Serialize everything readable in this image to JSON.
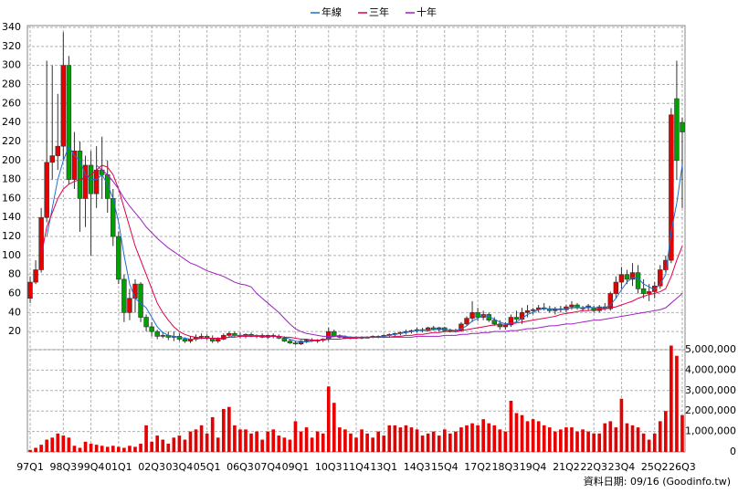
{
  "chart_data": {
    "type": "candlestick",
    "categories": [
      "97Q1",
      null,
      null,
      null,
      null,
      null,
      "98Q3",
      null,
      null,
      null,
      null,
      "99Q4",
      null,
      null,
      null,
      null,
      "01Q1",
      null,
      null,
      null,
      null,
      null,
      "02Q3",
      null,
      null,
      null,
      null,
      "03Q4",
      null,
      null,
      null,
      null,
      "05Q1",
      null,
      null,
      null,
      null,
      null,
      "06Q3",
      null,
      null,
      null,
      null,
      "07Q4",
      null,
      null,
      null,
      null,
      "09Q1",
      null,
      null,
      null,
      null,
      null,
      "10Q3",
      null,
      null,
      null,
      null,
      "11Q4",
      null,
      null,
      null,
      null,
      "13Q1",
      null,
      null,
      null,
      null,
      null,
      "14Q3",
      null,
      null,
      null,
      null,
      "15Q4",
      null,
      null,
      null,
      null,
      null,
      "17Q2",
      null,
      null,
      null,
      null,
      "18Q3",
      null,
      null,
      null,
      null,
      "19Q4",
      null,
      null,
      null,
      null,
      null,
      "21Q2",
      null,
      null,
      null,
      null,
      "22Q3",
      null,
      null,
      null,
      null,
      "23Q4",
      null,
      null,
      null,
      null,
      null,
      "25Q2",
      null,
      null,
      null,
      null,
      "26Q3"
    ],
    "open": [
      55,
      72,
      85,
      140,
      198,
      205,
      215,
      300,
      180,
      210,
      160,
      195,
      165,
      190,
      185,
      160,
      120,
      75,
      40,
      55,
      70,
      35,
      25,
      20,
      15,
      16,
      14,
      15,
      12,
      10,
      12,
      14,
      15,
      13,
      10,
      12,
      16,
      18,
      16,
      15,
      17,
      15,
      16,
      14,
      16,
      15,
      13,
      10,
      8,
      7,
      10,
      11,
      10,
      11,
      12,
      20,
      15,
      14,
      13,
      14,
      13,
      14,
      14,
      15,
      15,
      16,
      17,
      18,
      19,
      20,
      21,
      22,
      21,
      24,
      22,
      24,
      21,
      20,
      21,
      28,
      34,
      40,
      35,
      38,
      32,
      28,
      25,
      27,
      35,
      33,
      40,
      42,
      43,
      45,
      44,
      42,
      44,
      43,
      46,
      48,
      44,
      45,
      45,
      42,
      46,
      44,
      60,
      72,
      80,
      75,
      82,
      65,
      60,
      62,
      68,
      85,
      95,
      265,
      240
    ],
    "high": [
      78,
      95,
      150,
      305,
      300,
      270,
      335,
      310,
      230,
      220,
      205,
      210,
      215,
      225,
      200,
      170,
      125,
      80,
      65,
      75,
      72,
      38,
      30,
      22,
      20,
      20,
      20,
      18,
      14,
      15,
      17,
      18,
      17,
      16,
      14,
      18,
      20,
      20,
      19,
      18,
      19,
      17,
      18,
      17,
      18,
      17,
      15,
      12,
      10,
      11,
      12,
      13,
      12,
      13,
      24,
      22,
      17,
      16,
      15,
      15,
      15,
      15,
      16,
      16,
      17,
      18,
      19,
      20,
      22,
      22,
      24,
      24,
      25,
      26,
      25,
      25,
      23,
      23,
      30,
      36,
      52,
      45,
      42,
      40,
      35,
      32,
      30,
      38,
      42,
      45,
      48,
      45,
      48,
      50,
      47,
      46,
      47,
      48,
      52,
      50,
      47,
      49,
      47,
      48,
      50,
      62,
      78,
      88,
      85,
      92,
      90,
      75,
      70,
      72,
      90,
      100,
      255,
      305,
      245
    ],
    "low": [
      50,
      70,
      82,
      135,
      180,
      190,
      200,
      175,
      170,
      125,
      130,
      100,
      150,
      160,
      145,
      110,
      70,
      30,
      32,
      40,
      30,
      20,
      15,
      12,
      13,
      11,
      10,
      10,
      8,
      8,
      10,
      12,
      11,
      8,
      8,
      11,
      14,
      14,
      13,
      13,
      14,
      13,
      13,
      12,
      13,
      12,
      9,
      7,
      6,
      6,
      8,
      9,
      8,
      9,
      10,
      14,
      13,
      12,
      12,
      12,
      12,
      13,
      13,
      13,
      14,
      14,
      15,
      16,
      17,
      18,
      19,
      19,
      20,
      21,
      20,
      20,
      19,
      19,
      20,
      26,
      30,
      31,
      32,
      30,
      26,
      22,
      22,
      25,
      30,
      28,
      35,
      38,
      40,
      42,
      40,
      38,
      40,
      40,
      43,
      43,
      41,
      42,
      40,
      40,
      42,
      42,
      55,
      65,
      70,
      68,
      60,
      55,
      52,
      55,
      65,
      82,
      92,
      180,
      150
    ],
    "close": [
      72,
      85,
      140,
      198,
      205,
      215,
      300,
      180,
      210,
      160,
      195,
      165,
      190,
      185,
      160,
      120,
      75,
      40,
      55,
      70,
      35,
      25,
      20,
      15,
      16,
      14,
      15,
      12,
      10,
      12,
      14,
      15,
      13,
      10,
      12,
      16,
      18,
      16,
      15,
      17,
      15,
      16,
      14,
      16,
      15,
      13,
      10,
      8,
      7,
      10,
      11,
      10,
      11,
      12,
      20,
      15,
      14,
      13,
      14,
      13,
      14,
      14,
      15,
      14,
      16,
      17,
      18,
      19,
      20,
      21,
      22,
      21,
      24,
      22,
      24,
      21,
      20,
      21,
      28,
      34,
      40,
      35,
      38,
      32,
      28,
      25,
      27,
      35,
      33,
      40,
      42,
      43,
      45,
      44,
      42,
      44,
      43,
      46,
      48,
      45,
      45,
      47,
      42,
      46,
      44,
      60,
      72,
      80,
      75,
      82,
      65,
      60,
      62,
      68,
      85,
      95,
      248,
      200,
      230
    ],
    "up_color": "#e60000",
    "down_color": "#00a000",
    "ylim": [
      0,
      340
    ],
    "yticks": [
      20,
      40,
      60,
      80,
      100,
      120,
      140,
      160,
      180,
      200,
      220,
      240,
      260,
      280,
      300,
      320,
      340
    ],
    "grid": true,
    "series": [
      {
        "name": "年線",
        "color": "#1f6fd0",
        "values": [
          null,
          null,
          null,
          120,
          150,
          180,
          200,
          215,
          205,
          200,
          185,
          180,
          180,
          185,
          175,
          160,
          135,
          100,
          70,
          55,
          50,
          45,
          35,
          25,
          19,
          16,
          15,
          14,
          13,
          12,
          12,
          13,
          13,
          13,
          13,
          13,
          14,
          16,
          16,
          16,
          16,
          16,
          15,
          15,
          15,
          15,
          14,
          12,
          10,
          9,
          9,
          10,
          11,
          11,
          13,
          15,
          16,
          15,
          14,
          14,
          14,
          14,
          14,
          14,
          15,
          16,
          17,
          18,
          19,
          20,
          21,
          21,
          22,
          22,
          23,
          22,
          22,
          21,
          23,
          26,
          31,
          34,
          37,
          36,
          33,
          30,
          28,
          29,
          30,
          34,
          38,
          40,
          43,
          44,
          44,
          44,
          43,
          44,
          45,
          45,
          45,
          46,
          45,
          45,
          45,
          48,
          55,
          64,
          72,
          77,
          76,
          70,
          67,
          64,
          70,
          80,
          125,
          155,
          195
        ]
      },
      {
        "name": "三年",
        "color": "#e0004a",
        "values": [
          null,
          null,
          100,
          130,
          145,
          160,
          170,
          175,
          178,
          180,
          182,
          185,
          190,
          195,
          193,
          185,
          170,
          150,
          130,
          110,
          95,
          80,
          65,
          50,
          40,
          32,
          25,
          20,
          17,
          15,
          14,
          13,
          13,
          13,
          13,
          13,
          14,
          14,
          15,
          15,
          15,
          15,
          15,
          15,
          15,
          15,
          14,
          14,
          13,
          12,
          12,
          11,
          11,
          11,
          12,
          12,
          12,
          13,
          13,
          13,
          14,
          14,
          14,
          14,
          14,
          14,
          15,
          15,
          16,
          16,
          17,
          17,
          18,
          19,
          19,
          20,
          20,
          20,
          21,
          22,
          23,
          24,
          25,
          26,
          27,
          27,
          27,
          28,
          29,
          30,
          31,
          32,
          33,
          34,
          35,
          36,
          38,
          39,
          40,
          41,
          42,
          42,
          43,
          43,
          44,
          45,
          46,
          48,
          50,
          52,
          55,
          57,
          59,
          60,
          62,
          65,
          78,
          95,
          110
        ]
      },
      {
        "name": "十年",
        "color": "#a020c0",
        "values": [
          null,
          null,
          null,
          null,
          null,
          null,
          null,
          null,
          null,
          null,
          null,
          null,
          195,
          190,
          185,
          178,
          170,
          160,
          152,
          145,
          138,
          130,
          124,
          118,
          113,
          108,
          104,
          100,
          96,
          92,
          90,
          87,
          84,
          82,
          80,
          78,
          75,
          72,
          70,
          69,
          67,
          60,
          55,
          50,
          45,
          40,
          34,
          28,
          23,
          20,
          18,
          17,
          16,
          15,
          15,
          15,
          15,
          14,
          14,
          14,
          14,
          14,
          14,
          14,
          14,
          14,
          14,
          14,
          14,
          14,
          15,
          15,
          15,
          15,
          15,
          16,
          16,
          16,
          17,
          17,
          18,
          18,
          19,
          19,
          20,
          20,
          20,
          21,
          21,
          22,
          23,
          23,
          24,
          25,
          26,
          26,
          27,
          28,
          28,
          29,
          30,
          31,
          32,
          32,
          33,
          34,
          35,
          36,
          37,
          38,
          39,
          40,
          41,
          42,
          43,
          45,
          50,
          55,
          60
        ]
      }
    ],
    "volume": {
      "color": "#e60000",
      "values": [
        100000,
        200000,
        350000,
        600000,
        700000,
        900000,
        800000,
        700000,
        300000,
        200000,
        500000,
        400000,
        350000,
        300000,
        250000,
        300000,
        250000,
        200000,
        300000,
        250000,
        400000,
        1300000,
        500000,
        800000,
        600000,
        400000,
        700000,
        800000,
        600000,
        1000000,
        1100000,
        1300000,
        900000,
        1700000,
        700000,
        2100000,
        2200000,
        1300000,
        1100000,
        1100000,
        900000,
        1000000,
        600000,
        1000000,
        1100000,
        800000,
        700000,
        600000,
        1500000,
        1000000,
        1200000,
        700000,
        1000000,
        900000,
        3200000,
        2400000,
        1200000,
        1100000,
        900000,
        700000,
        1100000,
        900000,
        700000,
        1000000,
        800000,
        1300000,
        1300000,
        1200000,
        1300000,
        1200000,
        1100000,
        800000,
        900000,
        1000000,
        800000,
        1100000,
        900000,
        1000000,
        1200000,
        1300000,
        1400000,
        1300000,
        1600000,
        1400000,
        1300000,
        1100000,
        1000000,
        2500000,
        1900000,
        1800000,
        1500000,
        1600000,
        1500000,
        1300000,
        1200000,
        1000000,
        1100000,
        1200000,
        1200000,
        1000000,
        1100000,
        1000000,
        900000,
        900000,
        1400000,
        1500000,
        1200000,
        2600000,
        1400000,
        1300000,
        1200000,
        900000,
        600000,
        900000,
        1500000,
        2000000,
        5200000,
        4700000,
        1800000
      ],
      "ylim": [
        0,
        5000000
      ],
      "yticks": [
        0,
        {
          "value": 1000000,
          "label": "1,000,000"
        },
        {
          "value": 2000000,
          "label": "2,000,000"
        },
        {
          "value": 3000000,
          "label": "3,000,000"
        },
        {
          "value": 4000000,
          "label": "4,000,000"
        },
        {
          "value": 5000000,
          "label": "5,000,000"
        }
      ]
    },
    "note": "資料日期: 09/16 (Goodinfo.tw)"
  }
}
